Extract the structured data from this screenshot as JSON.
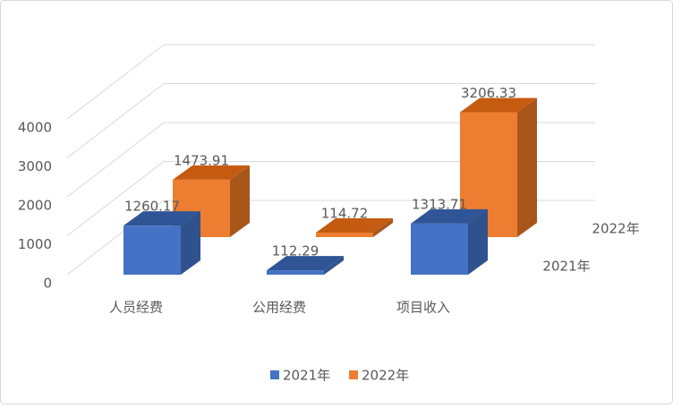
{
  "chart_data": {
    "type": "bar3d",
    "categories": [
      "人员经费",
      "公用经费",
      "项目收入"
    ],
    "series": [
      {
        "name": "2021年",
        "color": "#4472c4",
        "side_color": "#2f528f",
        "top_color": "#2f5597",
        "values": [
          1260.17,
          112.29,
          1313.71
        ]
      },
      {
        "name": "2022年",
        "color": "#ed7d31",
        "side_color": "#a9561b",
        "top_color": "#c55a11",
        "values": [
          1473.91,
          114.72,
          3206.33
        ]
      }
    ],
    "ylim": [
      0,
      4000
    ],
    "yticks": [
      0,
      1000,
      2000,
      3000,
      4000
    ],
    "grid": true,
    "legend": "bottom"
  }
}
